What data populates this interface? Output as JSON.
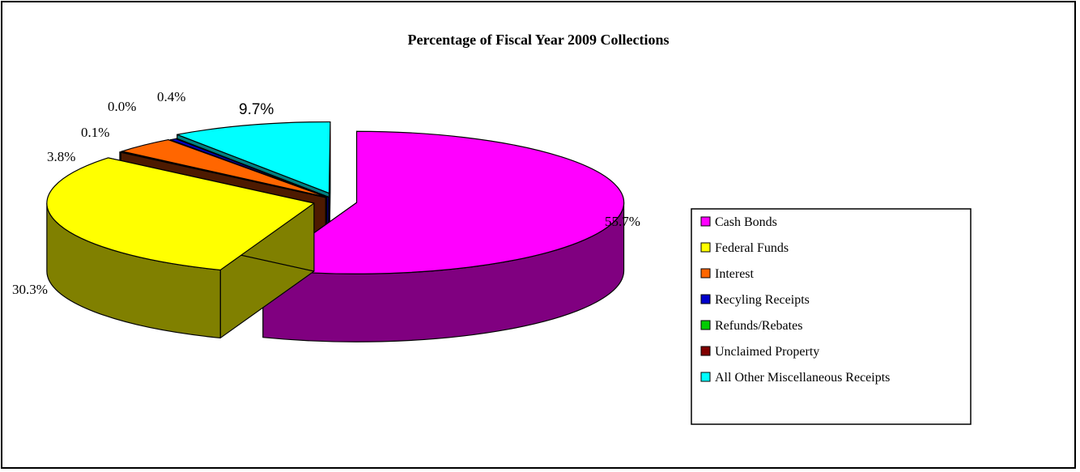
{
  "chart_data": {
    "type": "pie",
    "style": "3d-exploded",
    "title": "Percentage of Fiscal Year 2009 Collections",
    "legend_position": "right",
    "slices": [
      {
        "name": "Cash Bonds",
        "value": 55.7,
        "label": "55.7%",
        "color": "#FF00FF",
        "side_color": "#800080"
      },
      {
        "name": "Federal Funds",
        "value": 30.3,
        "label": "30.3%",
        "color": "#FFFF00",
        "side_color": "#808000"
      },
      {
        "name": "Unclaimed Property",
        "value": 0.1,
        "label": "0.1%",
        "color": "#993300",
        "side_color": "#4D1A00"
      },
      {
        "name": "Interest",
        "value": 3.8,
        "label": "3.8%",
        "color": "#FF6600",
        "side_color": "#993D00"
      },
      {
        "name": "Recyling Receipts",
        "value": 0.4,
        "label": "0.4%",
        "color": "#0000CC",
        "side_color": "#000066"
      },
      {
        "name": "Refunds/Rebates",
        "value": 0.0,
        "label": "0.0%",
        "color": "#00CC00",
        "side_color": "#006600"
      },
      {
        "name": "All Other Miscellaneous Receipts",
        "value": 9.7,
        "label": "9.7%",
        "color": "#00FFFF",
        "side_color": "#008080"
      }
    ],
    "legend": [
      {
        "name": "Cash Bonds",
        "color": "#FF00FF"
      },
      {
        "name": "Federal Funds",
        "color": "#FFFF00"
      },
      {
        "name": "Interest",
        "color": "#FF6600"
      },
      {
        "name": "Recyling Receipts",
        "color": "#0000CC"
      },
      {
        "name": "Refunds/Rebates",
        "color": "#00CC00"
      },
      {
        "name": "Unclaimed Property",
        "color": "#800000"
      },
      {
        "name": "All Other Miscellaneous Receipts",
        "color": "#00FFFF"
      }
    ]
  }
}
